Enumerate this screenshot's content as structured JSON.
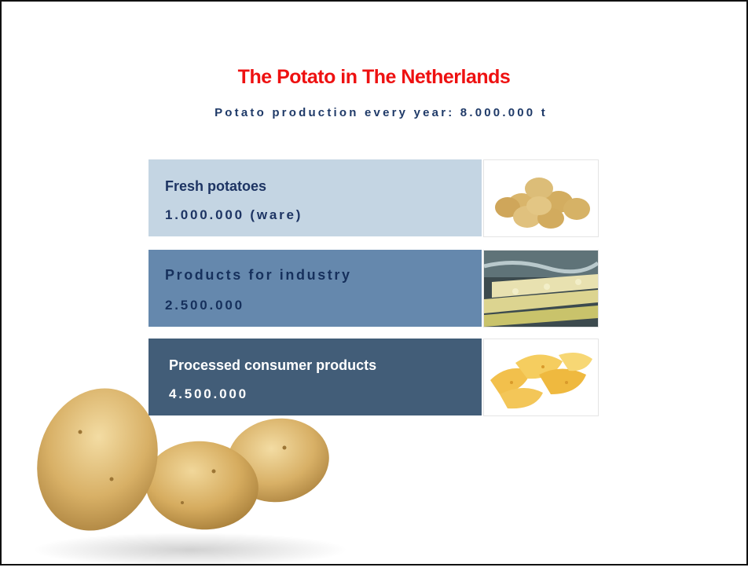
{
  "slide": {
    "title": "The Potato in The Netherlands",
    "subtitle": "Potato production every year: 8.000.000 t"
  },
  "categories": [
    {
      "name": "Fresh potatoes",
      "value": "1.000.000 (ware)",
      "image": "potatoes-pile-image",
      "color": "#c4d5e3"
    },
    {
      "name": "Products for industry",
      "value": "2.500.000",
      "image": "factory-line-image",
      "color": "#6588ad"
    },
    {
      "name": "Processed consumer products",
      "value": "4.500.000",
      "image": "potato-chips-image",
      "color": "#425d78"
    }
  ],
  "decoration": {
    "image": "three-potatoes-image"
  }
}
